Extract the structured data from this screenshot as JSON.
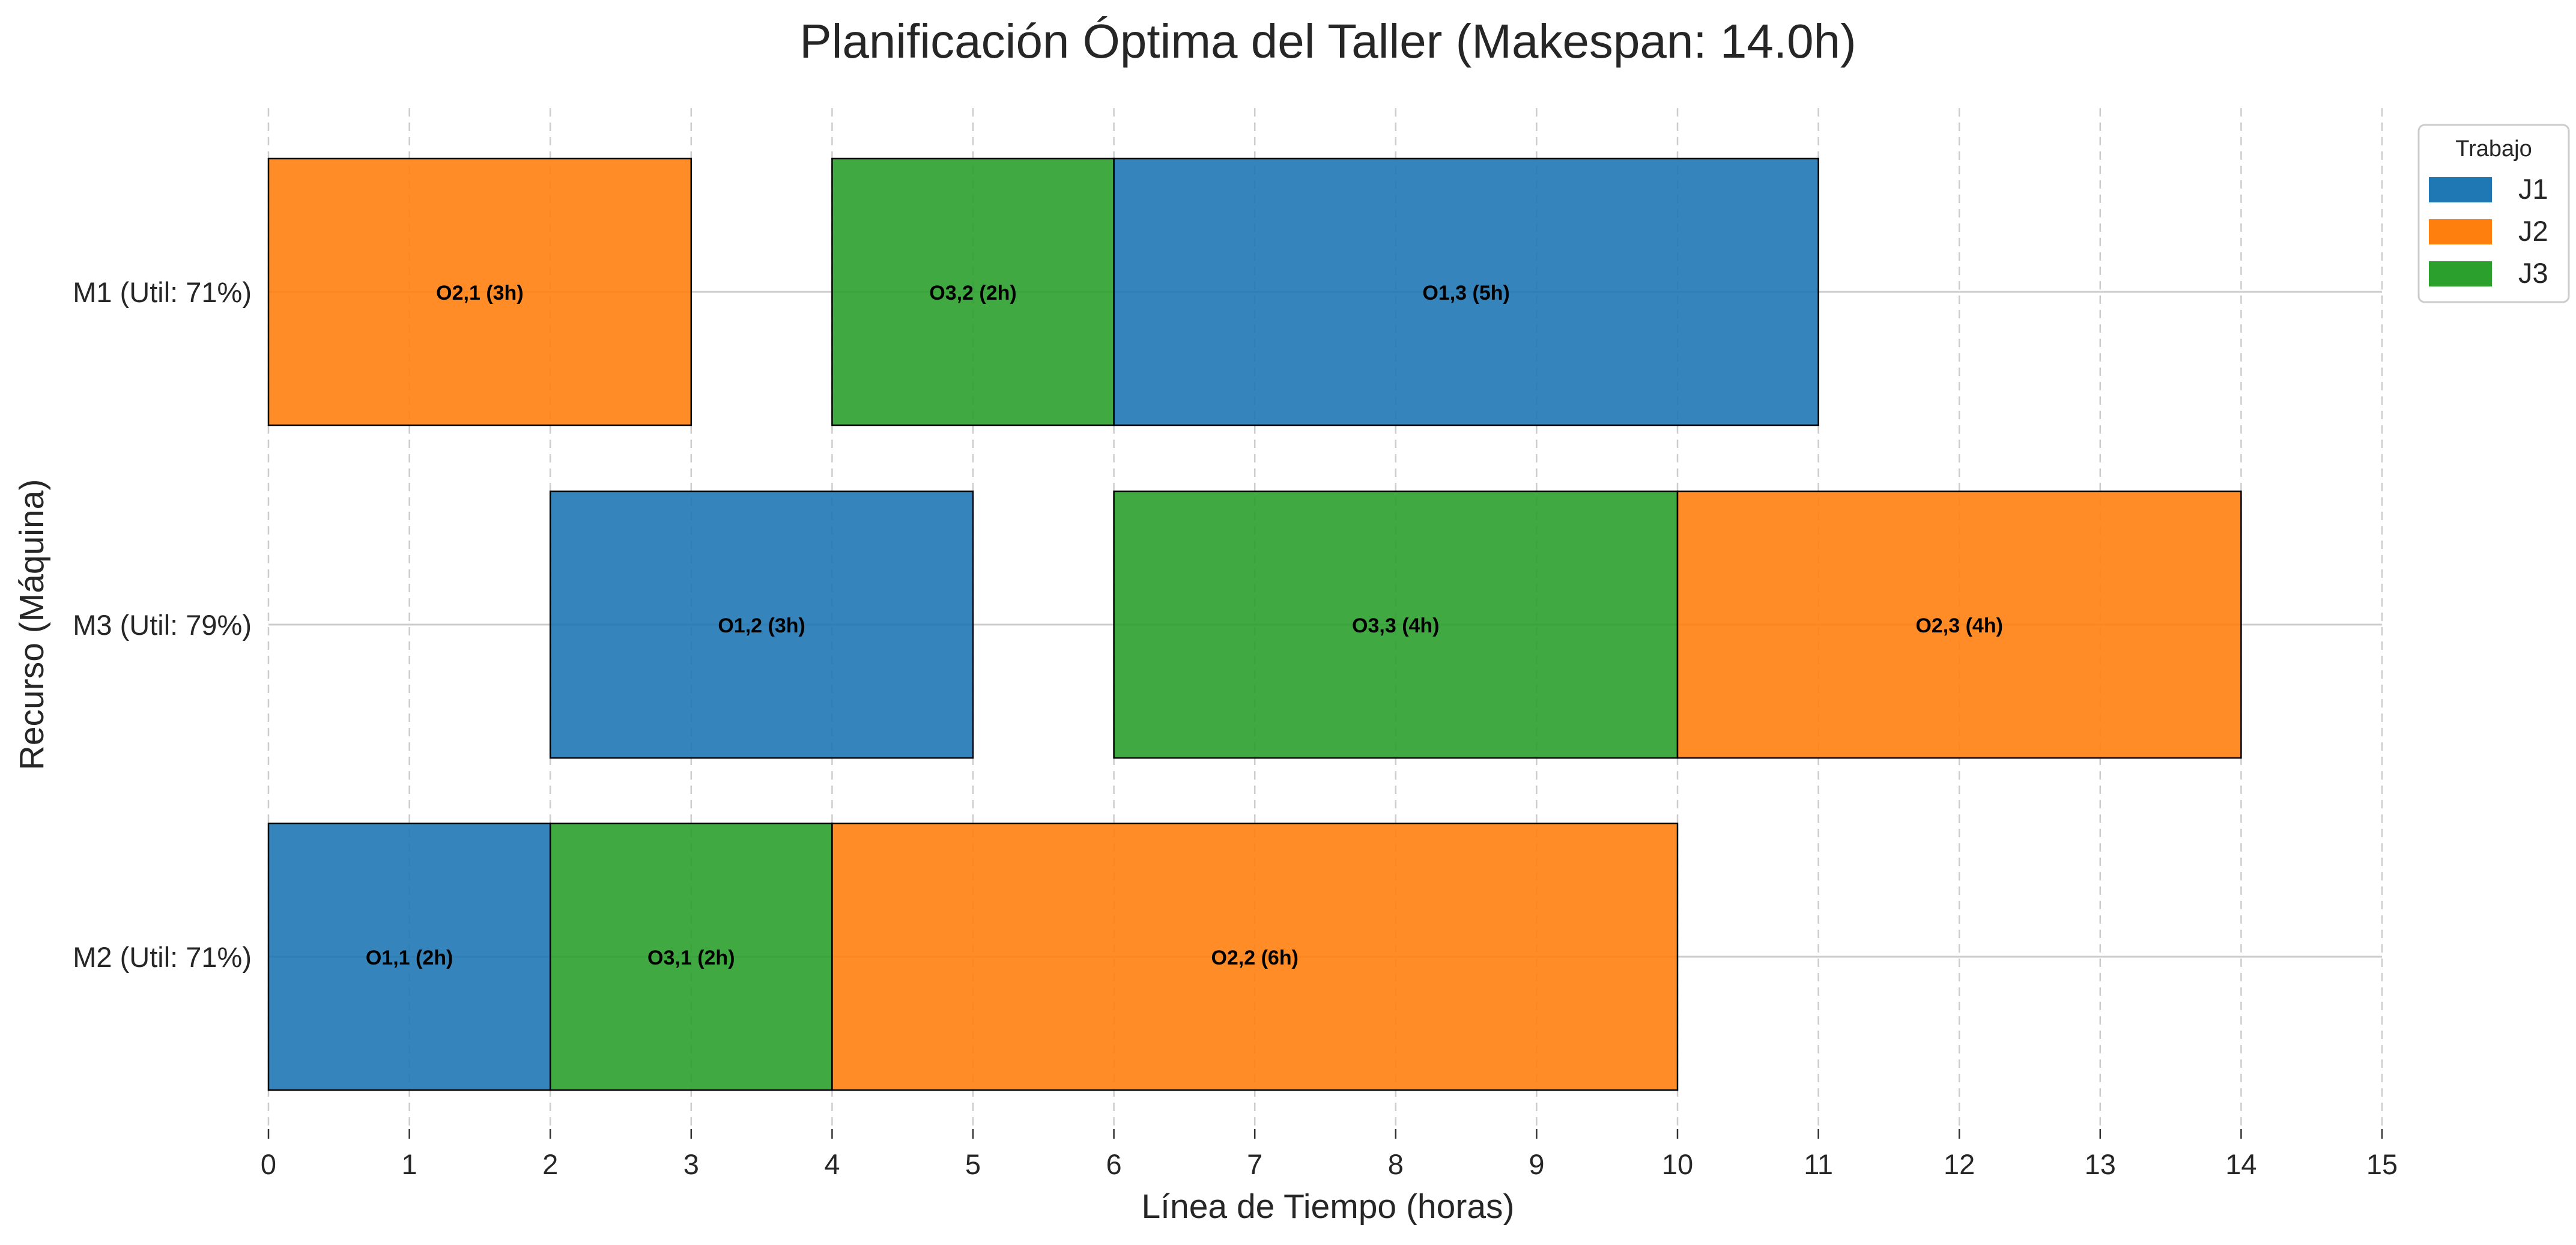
{
  "chart_data": {
    "type": "gantt",
    "title": "Planificación Óptima del Taller (Makespan: 14.0h)",
    "xlabel": "Línea de Tiempo (horas)",
    "ylabel": "Recurso (Máquina)",
    "xlim": [
      0,
      15
    ],
    "xticks": [
      "0",
      "1",
      "2",
      "3",
      "4",
      "5",
      "6",
      "7",
      "8",
      "9",
      "10",
      "11",
      "12",
      "13",
      "14",
      "15"
    ],
    "grid": {
      "x": true,
      "x_style": "dashed",
      "y": true
    },
    "machines": [
      {
        "id": "M1",
        "label": "M1 (Util: 71%)",
        "utilization": 71
      },
      {
        "id": "M3",
        "label": "M3 (Util: 79%)",
        "utilization": 79
      },
      {
        "id": "M2",
        "label": "M2 (Util: 71%)",
        "utilization": 71
      }
    ],
    "operations": [
      {
        "machine": "M1",
        "job": "J2",
        "label": "O2,1 (3h)",
        "start": 0,
        "duration": 3
      },
      {
        "machine": "M1",
        "job": "J3",
        "label": "O3,2 (2h)",
        "start": 4,
        "duration": 2
      },
      {
        "machine": "M1",
        "job": "J1",
        "label": "O1,3 (5h)",
        "start": 6,
        "duration": 5
      },
      {
        "machine": "M3",
        "job": "J1",
        "label": "O1,2 (3h)",
        "start": 2,
        "duration": 3
      },
      {
        "machine": "M3",
        "job": "J3",
        "label": "O3,3 (4h)",
        "start": 6,
        "duration": 4
      },
      {
        "machine": "M3",
        "job": "J2",
        "label": "O2,3 (4h)",
        "start": 10,
        "duration": 4
      },
      {
        "machine": "M2",
        "job": "J1",
        "label": "O1,1 (2h)",
        "start": 0,
        "duration": 2
      },
      {
        "machine": "M2",
        "job": "J3",
        "label": "O3,1 (2h)",
        "start": 2,
        "duration": 2
      },
      {
        "machine": "M2",
        "job": "J2",
        "label": "O2,2 (6h)",
        "start": 4,
        "duration": 6
      }
    ],
    "legend": {
      "title": "Trabajo",
      "placement": "top-right",
      "entries": [
        {
          "job": "J1",
          "label": "J1",
          "color": "#1f77b4"
        },
        {
          "job": "J2",
          "label": "J2",
          "color": "#ff7f0e"
        },
        {
          "job": "J3",
          "label": "J3",
          "color": "#2ca02c"
        }
      ]
    },
    "colors": {
      "gridline": "#cccccc",
      "bar_edge": "#000000",
      "text": "#262626",
      "bar_label": "#000000"
    }
  }
}
